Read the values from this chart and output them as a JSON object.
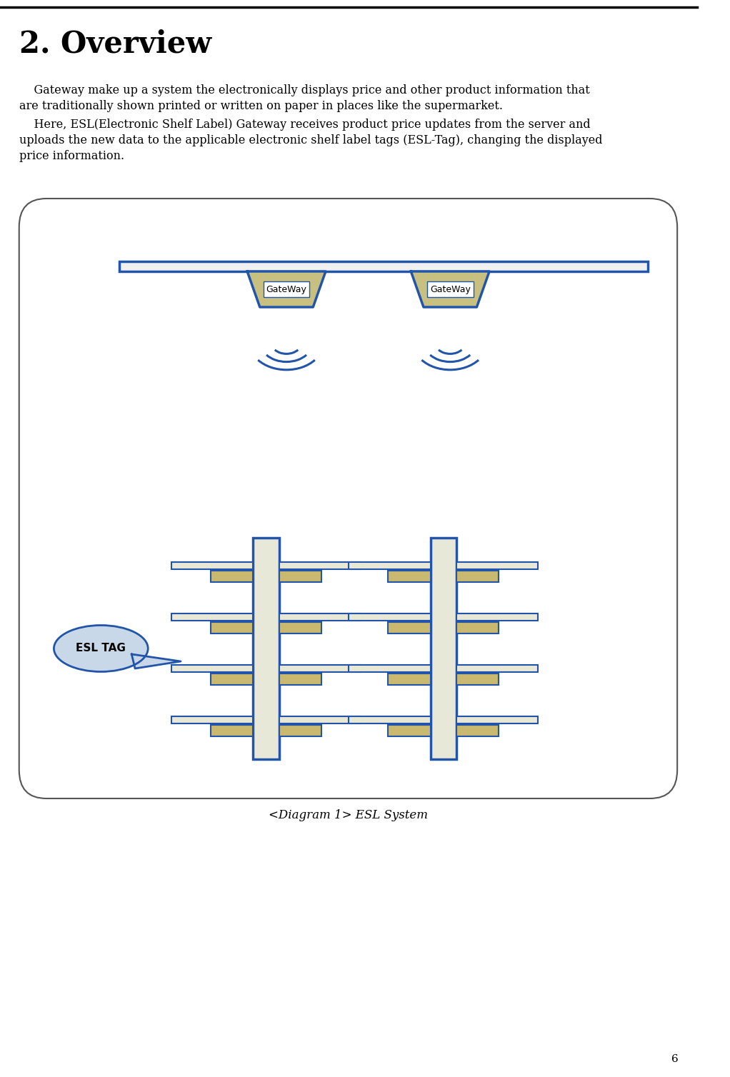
{
  "title": "2. Overview",
  "para1_line1": "    Gateway make up a system the electronically displays price and other product information that",
  "para1_line2": "are traditionally shown printed or written on paper in places like the supermarket.",
  "para2_line1": "    Here, ESL(Electronic Shelf Label) Gateway receives product price updates from the server and",
  "para2_line2": "uploads the new data to the applicable electronic shelf label tags (ESL-Tag), changing the displayed",
  "para2_line3": "price information.",
  "diagram_caption": "<Diagram 1> ESL System",
  "page_number": "6",
  "bg_color": "#ffffff",
  "box_outline_color": "#555555",
  "blue_color": "#2255aa",
  "gateway_fill": "#c8c080",
  "gateway_outline": "#2255aa",
  "shelf_pole_fill": "#e8e8d8",
  "shelf_pole_outline": "#2255aa",
  "shelf_bracket_fill": "#c8b870",
  "shelf_bracket_outline": "#2255aa",
  "rail_fill": "#e8e8d8",
  "rail_outline": "#2255aa",
  "esl_tag_fill": "#c8d8e8",
  "esl_tag_outline": "#2255aa",
  "wifi_color": "#2255aa",
  "title_fontsize": 30,
  "body_fontsize": 11.5
}
